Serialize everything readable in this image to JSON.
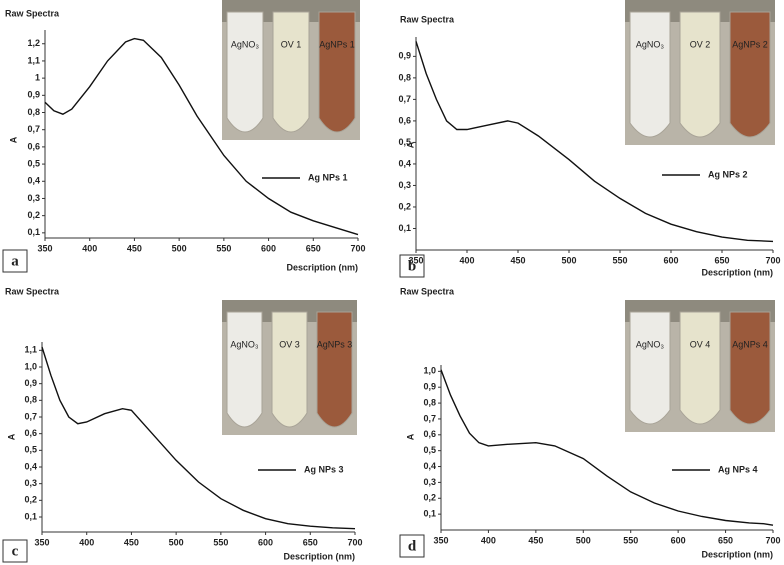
{
  "chart_data": [
    {
      "type": "line",
      "title": "Raw Spectra",
      "panel_label": "a",
      "x_label": "Description (nm)",
      "y_label": "A",
      "inset_labels": [
        "AgNO₃",
        "OV 1",
        "AgNPs 1"
      ],
      "x": [
        350,
        360,
        370,
        380,
        400,
        420,
        440,
        450,
        460,
        480,
        500,
        520,
        550,
        575,
        600,
        625,
        650,
        675,
        700
      ],
      "series": [
        {
          "name": "Ag NPs 1",
          "color": "#111111",
          "values": [
            0.86,
            0.81,
            0.79,
            0.82,
            0.95,
            1.1,
            1.21,
            1.23,
            1.22,
            1.12,
            0.96,
            0.78,
            0.55,
            0.4,
            0.3,
            0.22,
            0.17,
            0.13,
            0.09
          ]
        }
      ],
      "xlim": [
        350,
        700
      ],
      "xticks": [
        350,
        400,
        450,
        500,
        550,
        600,
        650,
        700
      ],
      "ylim": [
        0.07,
        1.28
      ],
      "yticks": [
        {
          "value": 0.1,
          "label": "0,1"
        },
        {
          "value": 0.2,
          "label": "0,2"
        },
        {
          "value": 0.3,
          "label": "0,3"
        },
        {
          "value": 0.4,
          "label": "0,4"
        },
        {
          "value": 0.5,
          "label": "0,5"
        },
        {
          "value": 0.6,
          "label": "0,6"
        },
        {
          "value": 0.7,
          "label": "0,7"
        },
        {
          "value": 0.8,
          "label": "0,8"
        },
        {
          "value": 0.9,
          "label": "0,9"
        },
        {
          "value": 1.0,
          "label": "1"
        },
        {
          "value": 1.1,
          "label": "1,1"
        },
        {
          "value": 1.2,
          "label": "1,2"
        }
      ]
    },
    {
      "type": "line",
      "title": "Raw Spectra",
      "panel_label": "b",
      "x_label": "Description (nm)",
      "y_label": "A",
      "inset_labels": [
        "AgNO₃",
        "OV 2",
        "AgNPs 2"
      ],
      "x": [
        350,
        360,
        370,
        380,
        390,
        400,
        420,
        440,
        450,
        470,
        500,
        525,
        550,
        575,
        600,
        625,
        650,
        675,
        700
      ],
      "series": [
        {
          "name": "Ag NPs 2",
          "color": "#111111",
          "values": [
            0.97,
            0.82,
            0.7,
            0.6,
            0.56,
            0.56,
            0.58,
            0.6,
            0.59,
            0.53,
            0.42,
            0.32,
            0.24,
            0.17,
            0.12,
            0.085,
            0.06,
            0.045,
            0.04
          ]
        }
      ],
      "xlim": [
        350,
        700
      ],
      "xticks": [
        350,
        400,
        450,
        500,
        550,
        600,
        650,
        700
      ],
      "ylim": [
        0,
        0.99
      ],
      "yticks": [
        {
          "value": 0.1,
          "label": "0,1"
        },
        {
          "value": 0.2,
          "label": "0,2"
        },
        {
          "value": 0.3,
          "label": "0,3"
        },
        {
          "value": 0.4,
          "label": "0,4"
        },
        {
          "value": 0.5,
          "label": "0,5"
        },
        {
          "value": 0.6,
          "label": "0,6"
        },
        {
          "value": 0.7,
          "label": "0,7"
        },
        {
          "value": 0.8,
          "label": "0,8"
        },
        {
          "value": 0.9,
          "label": "0,9"
        }
      ]
    },
    {
      "type": "line",
      "title": "Raw Spectra",
      "panel_label": "c",
      "x_label": "Description (nm)",
      "y_label": "A",
      "inset_labels": [
        "AgNO₃",
        "OV 3",
        "AgNPs 3"
      ],
      "x": [
        350,
        360,
        370,
        380,
        390,
        400,
        420,
        440,
        450,
        470,
        500,
        525,
        550,
        575,
        600,
        625,
        650,
        675,
        700
      ],
      "series": [
        {
          "name": "Ag NPs 3",
          "color": "#111111",
          "values": [
            1.12,
            0.95,
            0.8,
            0.7,
            0.66,
            0.67,
            0.72,
            0.75,
            0.74,
            0.62,
            0.44,
            0.31,
            0.21,
            0.14,
            0.09,
            0.06,
            0.045,
            0.035,
            0.03
          ]
        }
      ],
      "xlim": [
        350,
        700
      ],
      "xticks": [
        350,
        400,
        450,
        500,
        550,
        600,
        650,
        700
      ],
      "ylim": [
        0.01,
        1.15
      ],
      "yticks": [
        {
          "value": 0.1,
          "label": "0,1"
        },
        {
          "value": 0.2,
          "label": "0,2"
        },
        {
          "value": 0.3,
          "label": "0,3"
        },
        {
          "value": 0.4,
          "label": "0,4"
        },
        {
          "value": 0.5,
          "label": "0,5"
        },
        {
          "value": 0.6,
          "label": "0,6"
        },
        {
          "value": 0.7,
          "label": "0,7"
        },
        {
          "value": 0.8,
          "label": "0,8"
        },
        {
          "value": 0.9,
          "label": "0,9"
        },
        {
          "value": 1.0,
          "label": "1,0"
        },
        {
          "value": 1.1,
          "label": "1,1"
        }
      ]
    },
    {
      "type": "line",
      "title": "Raw Spectra",
      "panel_label": "d",
      "x_label": "Description (nm)",
      "y_label": "A",
      "inset_labels": [
        "AgNO₃",
        "OV 4",
        "AgNPs 4"
      ],
      "x": [
        350,
        360,
        370,
        380,
        390,
        400,
        420,
        450,
        470,
        500,
        525,
        550,
        575,
        600,
        625,
        650,
        675,
        690,
        700
      ],
      "series": [
        {
          "name": "Ag NPs 4",
          "color": "#111111",
          "values": [
            1.01,
            0.85,
            0.72,
            0.61,
            0.55,
            0.53,
            0.54,
            0.55,
            0.53,
            0.45,
            0.34,
            0.24,
            0.17,
            0.12,
            0.085,
            0.06,
            0.045,
            0.04,
            0.03
          ]
        }
      ],
      "xlim": [
        350,
        700
      ],
      "xticks": [
        350,
        400,
        450,
        500,
        550,
        600,
        650,
        700
      ],
      "ylim": [
        0,
        1.04
      ],
      "yticks": [
        {
          "value": 0.1,
          "label": "0,1"
        },
        {
          "value": 0.2,
          "label": "0,2"
        },
        {
          "value": 0.3,
          "label": "0,3"
        },
        {
          "value": 0.4,
          "label": "0,4"
        },
        {
          "value": 0.5,
          "label": "0,5"
        },
        {
          "value": 0.6,
          "label": "0,6"
        },
        {
          "value": 0.7,
          "label": "0,7"
        },
        {
          "value": 0.8,
          "label": "0,8"
        },
        {
          "value": 0.9,
          "label": "0,9"
        },
        {
          "value": 1.0,
          "label": "1,0"
        }
      ]
    }
  ]
}
